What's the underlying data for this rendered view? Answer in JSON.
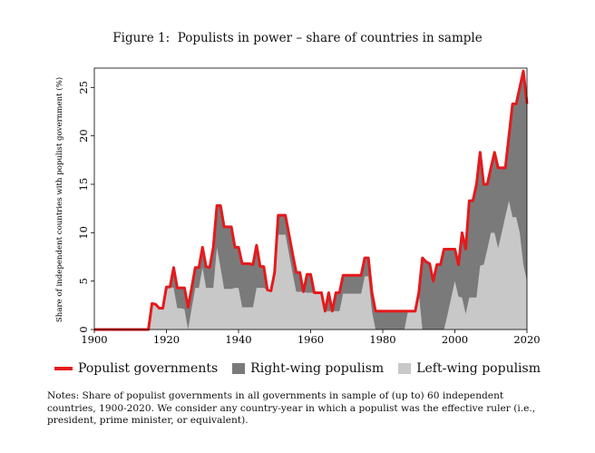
{
  "figure": {
    "title": "Figure 1:  Populists in power – share of countries in sample",
    "notes": "Notes: Share of populist governments in all governments in sample of (up to) 60 independent countries, 1900-2020. We consider any country-year in which a populist was the effective ruler (i.e., president, prime minister, or equivalent)."
  },
  "chart_data": {
    "type": "area",
    "title": "Populists in power – share of countries in sample",
    "xlabel": "",
    "ylabel": "Share of independent countries with populist government (%)",
    "xlim": [
      1900,
      2020
    ],
    "ylim": [
      0,
      27
    ],
    "xticks": [
      1900,
      1920,
      1940,
      1960,
      1980,
      2000,
      2020
    ],
    "yticks": [
      0,
      5,
      10,
      15,
      20,
      25
    ],
    "colors": {
      "total": "#e41a1c",
      "right": "#7a7a7a",
      "left": "#c8c8c8"
    },
    "legend": [
      "Populist governments",
      "Right-wing populism",
      "Left-wing populism"
    ],
    "x": [
      1900,
      1915,
      1916,
      1917,
      1918,
      1919,
      1920,
      1921,
      1922,
      1923,
      1924,
      1925,
      1926,
      1927,
      1928,
      1929,
      1930,
      1931,
      1932,
      1933,
      1934,
      1935,
      1936,
      1937,
      1938,
      1939,
      1940,
      1941,
      1942,
      1943,
      1944,
      1945,
      1946,
      1947,
      1948,
      1949,
      1950,
      1951,
      1952,
      1953,
      1954,
      1955,
      1956,
      1957,
      1958,
      1959,
      1960,
      1961,
      1962,
      1963,
      1964,
      1965,
      1966,
      1967,
      1968,
      1969,
      1970,
      1971,
      1972,
      1973,
      1974,
      1975,
      1976,
      1977,
      1978,
      1979,
      1980,
      1981,
      1982,
      1983,
      1984,
      1985,
      1986,
      1987,
      1988,
      1989,
      1990,
      1991,
      1992,
      1993,
      1994,
      1995,
      1996,
      1997,
      1998,
      1999,
      2000,
      2001,
      2002,
      2003,
      2004,
      2005,
      2006,
      2007,
      2008,
      2009,
      2010,
      2011,
      2012,
      2013,
      2014,
      2015,
      2016,
      2017,
      2018,
      2019,
      2020
    ],
    "series": [
      {
        "name": "Populist governments",
        "values": [
          0,
          0,
          2.7,
          2.6,
          2.2,
          2.2,
          4.4,
          4.4,
          6.4,
          4.3,
          4.3,
          4.3,
          2.3,
          4.3,
          6.4,
          6.4,
          8.5,
          6.5,
          6.4,
          8.5,
          12.8,
          12.8,
          10.6,
          10.6,
          10.6,
          8.5,
          8.5,
          6.8,
          6.8,
          6.8,
          6.7,
          8.7,
          6.5,
          6.5,
          4.1,
          4.0,
          5.9,
          11.8,
          11.8,
          11.8,
          9.8,
          7.8,
          5.9,
          5.9,
          3.9,
          5.7,
          5.7,
          3.8,
          3.8,
          3.8,
          1.9,
          3.8,
          1.9,
          3.8,
          3.8,
          5.6,
          5.6,
          5.6,
          5.6,
          5.6,
          5.6,
          7.4,
          7.4,
          3.8,
          1.9,
          1.9,
          1.9,
          1.9,
          1.9,
          1.9,
          1.9,
          1.9,
          1.9,
          1.9,
          1.9,
          1.9,
          3.8,
          7.4,
          7.0,
          6.8,
          5.0,
          6.7,
          6.7,
          8.3,
          8.3,
          8.3,
          8.3,
          6.7,
          10.0,
          8.3,
          13.3,
          13.3,
          15.0,
          18.3,
          15.0,
          15.0,
          16.7,
          18.3,
          16.7,
          16.7,
          16.7,
          20.0,
          23.3,
          23.3,
          25.0,
          26.7,
          23.3
        ]
      },
      {
        "name": "Right-wing populism",
        "values": [
          0,
          0,
          0,
          0,
          0,
          0,
          0,
          0,
          2.1,
          2.1,
          2.1,
          2.2,
          2.3,
          2.1,
          2.1,
          2.1,
          2.1,
          2.2,
          2.1,
          4.2,
          4.3,
          6.4,
          6.4,
          6.4,
          6.4,
          4.2,
          4.2,
          4.5,
          4.5,
          4.5,
          4.4,
          4.4,
          2.2,
          2.2,
          0,
          0,
          0,
          2.0,
          2.0,
          2.0,
          2.0,
          2.0,
          2.0,
          2.0,
          0,
          1.9,
          1.9,
          0,
          0,
          0,
          0,
          1.9,
          0,
          1.9,
          1.9,
          1.9,
          1.9,
          1.9,
          1.9,
          1.9,
          1.9,
          1.9,
          1.9,
          1.9,
          1.9,
          1.9,
          1.9,
          1.9,
          1.9,
          1.9,
          1.9,
          1.9,
          1.9,
          0,
          0,
          0,
          0,
          7.4,
          7.0,
          6.8,
          5.0,
          6.7,
          6.7,
          8.3,
          6.7,
          5.0,
          3.3,
          3.3,
          6.7,
          6.7,
          10.0,
          10.0,
          11.7,
          11.7,
          8.3,
          6.7,
          6.7,
          8.3,
          8.3,
          6.7,
          5.0,
          6.7,
          11.7,
          11.7,
          15.0,
          20.0,
          18.3
        ]
      },
      {
        "name": "Left-wing populism",
        "values": [
          0,
          0,
          2.7,
          2.6,
          2.2,
          2.2,
          4.4,
          4.4,
          4.3,
          2.2,
          2.2,
          2.1,
          0,
          2.2,
          4.3,
          4.3,
          6.4,
          4.3,
          4.3,
          4.3,
          8.5,
          6.4,
          4.2,
          4.2,
          4.2,
          4.3,
          4.3,
          2.3,
          2.3,
          2.3,
          2.3,
          4.3,
          4.3,
          4.3,
          4.1,
          4.0,
          5.9,
          9.8,
          9.8,
          9.8,
          7.8,
          5.8,
          3.9,
          3.9,
          3.9,
          3.8,
          3.8,
          3.8,
          3.8,
          3.8,
          1.9,
          1.9,
          1.9,
          1.9,
          1.9,
          3.7,
          3.7,
          3.7,
          3.7,
          3.7,
          3.7,
          5.5,
          5.5,
          1.9,
          0,
          0,
          0,
          0,
          0,
          0,
          0,
          0,
          0,
          1.9,
          1.9,
          1.9,
          3.8,
          0,
          0,
          0,
          0,
          0,
          0,
          0,
          1.6,
          3.3,
          5.0,
          3.4,
          3.3,
          1.6,
          3.3,
          3.3,
          3.3,
          6.6,
          6.7,
          8.3,
          10.0,
          10.0,
          8.4,
          10.0,
          11.7,
          13.3,
          11.6,
          11.6,
          10.0,
          6.7,
          5.0
        ]
      }
    ]
  }
}
